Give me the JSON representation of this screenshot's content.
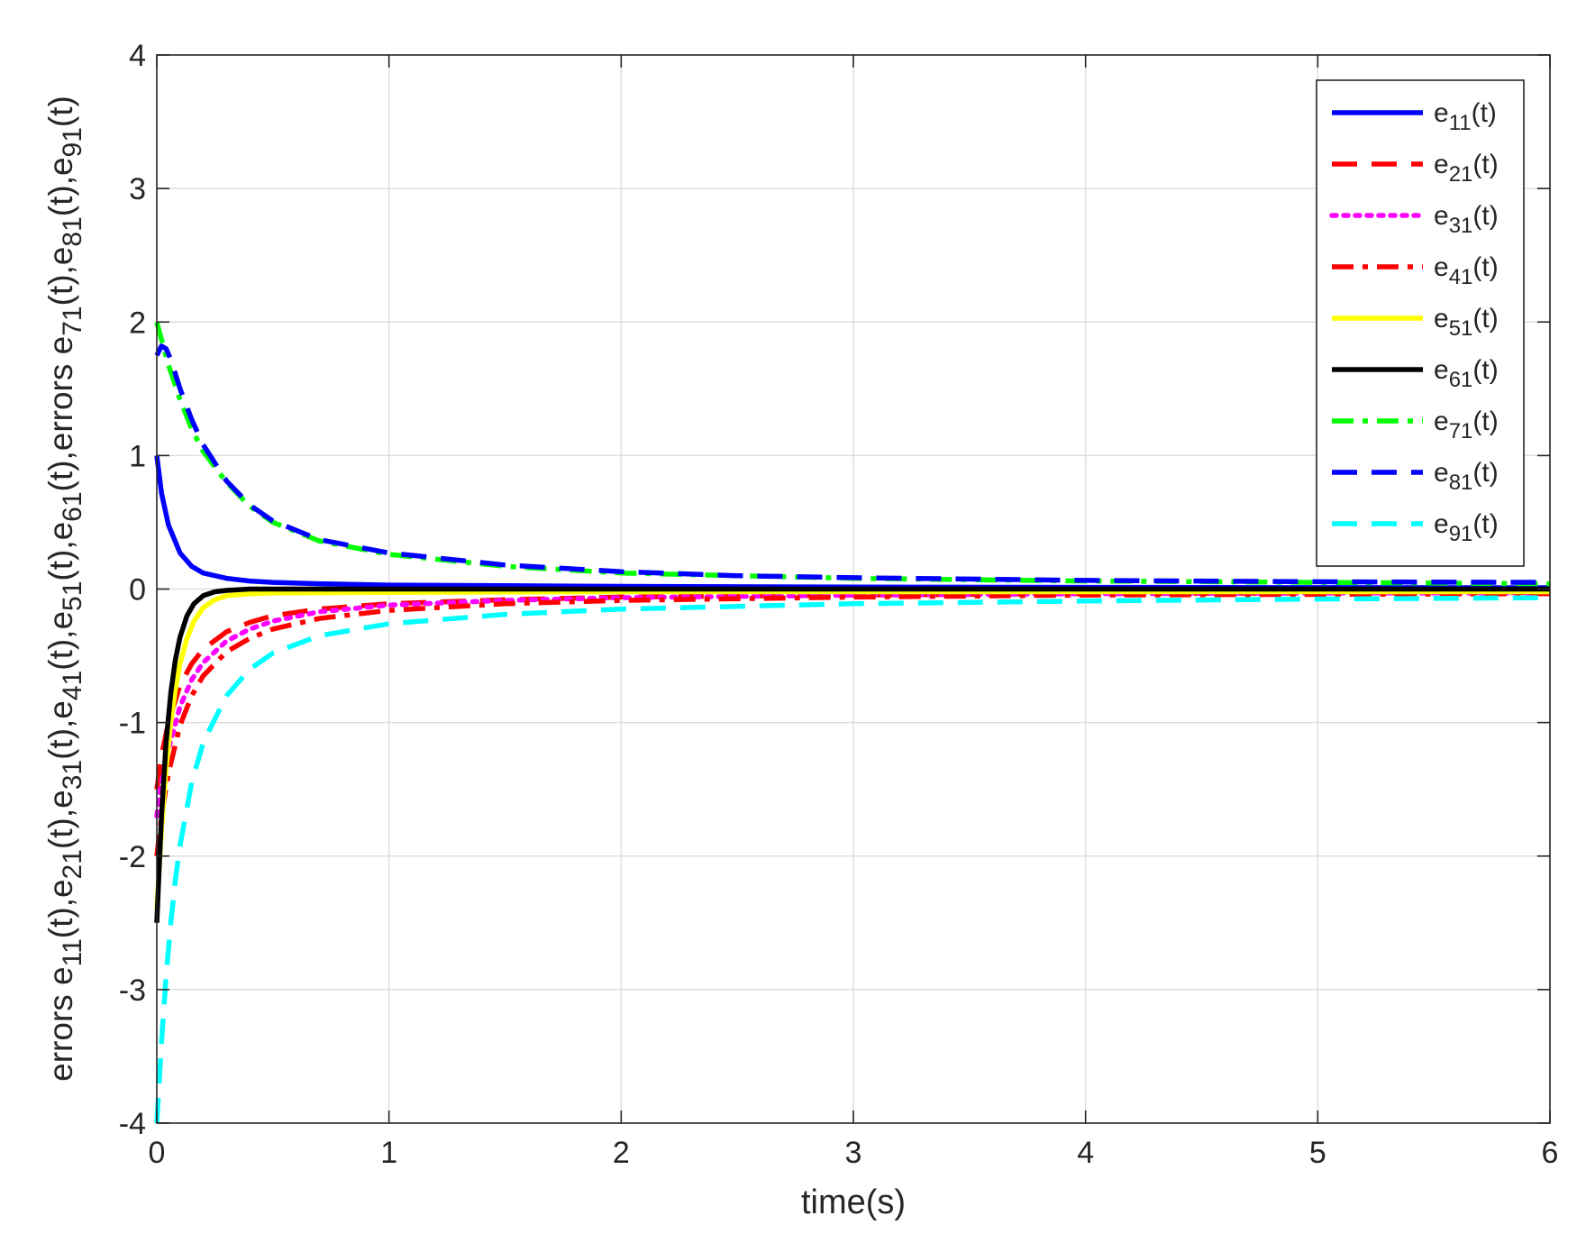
{
  "chart_data": {
    "type": "line",
    "title": "",
    "xlabel": "time(s)",
    "ylabel": "errors e11(t),e21(t),e31(t),e41(t),e51(t),e61(t),errors e71(t),e81(t),e91(t)",
    "ylabel_parts": [
      {
        "text": "errors e",
        "sub": false
      },
      {
        "text": "11",
        "sub": true
      },
      {
        "text": "(t),e",
        "sub": false
      },
      {
        "text": "21",
        "sub": true
      },
      {
        "text": "(t),e",
        "sub": false
      },
      {
        "text": "31",
        "sub": true
      },
      {
        "text": "(t),e",
        "sub": false
      },
      {
        "text": "41",
        "sub": true
      },
      {
        "text": "(t),e",
        "sub": false
      },
      {
        "text": "51",
        "sub": true
      },
      {
        "text": "(t),e",
        "sub": false
      },
      {
        "text": "61",
        "sub": true
      },
      {
        "text": "(t),errors e",
        "sub": false
      },
      {
        "text": "71",
        "sub": true
      },
      {
        "text": "(t),e",
        "sub": false
      },
      {
        "text": "81",
        "sub": true
      },
      {
        "text": "(t),e",
        "sub": false
      },
      {
        "text": "91",
        "sub": true
      },
      {
        "text": "(t)",
        "sub": false
      }
    ],
    "xlim": [
      0,
      6
    ],
    "ylim": [
      -4,
      4
    ],
    "xticks": [
      0,
      1,
      2,
      3,
      4,
      5,
      6
    ],
    "yticks": [
      -4,
      -3,
      -2,
      -1,
      0,
      1,
      2,
      3,
      4
    ],
    "grid": true,
    "legend_position": "top-right",
    "series": [
      {
        "name": "e11(t)",
        "sub": "11",
        "color": "#0000ff",
        "dash": "solid",
        "x": [
          0,
          0.02,
          0.05,
          0.1,
          0.15,
          0.2,
          0.3,
          0.4,
          0.5,
          0.7,
          1,
          1.5,
          2,
          3,
          4,
          5,
          6
        ],
        "y": [
          1.0,
          0.72,
          0.48,
          0.27,
          0.17,
          0.12,
          0.08,
          0.06,
          0.05,
          0.04,
          0.03,
          0.025,
          0.02,
          0.015,
          0.013,
          0.011,
          0.01
        ]
      },
      {
        "name": "e21(t)",
        "sub": "21",
        "color": "#ff0000",
        "dash": "dash",
        "x": [
          0,
          0.02,
          0.05,
          0.1,
          0.15,
          0.2,
          0.3,
          0.4,
          0.5,
          0.7,
          1,
          1.5,
          2,
          3,
          4,
          5,
          6
        ],
        "y": [
          -1.5,
          -1.25,
          -1.0,
          -0.72,
          -0.56,
          -0.45,
          -0.32,
          -0.25,
          -0.2,
          -0.15,
          -0.11,
          -0.08,
          -0.06,
          -0.045,
          -0.035,
          -0.03,
          -0.025
        ]
      },
      {
        "name": "e31(t)",
        "sub": "31",
        "color": "#ff00ff",
        "dash": "dot",
        "x": [
          0,
          0.02,
          0.05,
          0.1,
          0.15,
          0.2,
          0.3,
          0.4,
          0.5,
          0.7,
          1,
          1.5,
          2,
          3,
          4,
          5,
          6
        ],
        "y": [
          -1.7,
          -1.45,
          -1.2,
          -0.88,
          -0.68,
          -0.55,
          -0.39,
          -0.3,
          -0.24,
          -0.17,
          -0.12,
          -0.085,
          -0.065,
          -0.045,
          -0.035,
          -0.03,
          -0.03
        ]
      },
      {
        "name": "e41(t)",
        "sub": "41",
        "color": "#ff0000",
        "dash": "dashdot",
        "x": [
          0,
          0.02,
          0.05,
          0.1,
          0.15,
          0.2,
          0.3,
          0.4,
          0.5,
          0.7,
          1,
          1.5,
          2,
          3,
          4,
          5,
          6
        ],
        "y": [
          -2.0,
          -1.7,
          -1.38,
          -1.02,
          -0.8,
          -0.65,
          -0.47,
          -0.37,
          -0.3,
          -0.22,
          -0.16,
          -0.11,
          -0.085,
          -0.06,
          -0.045,
          -0.04,
          -0.035
        ]
      },
      {
        "name": "e51(t)",
        "sub": "51",
        "color": "#ffff00",
        "dash": "solid",
        "x": [
          0,
          0.02,
          0.04,
          0.06,
          0.08,
          0.1,
          0.13,
          0.16,
          0.2,
          0.25,
          0.3,
          0.4,
          0.5,
          1,
          2,
          4,
          6
        ],
        "y": [
          -2.4,
          -1.8,
          -1.35,
          -1.0,
          -0.75,
          -0.56,
          -0.37,
          -0.24,
          -0.14,
          -0.08,
          -0.05,
          -0.035,
          -0.03,
          -0.025,
          -0.02,
          -0.02,
          -0.02
        ]
      },
      {
        "name": "e61(t)",
        "sub": "61",
        "color": "#000000",
        "dash": "solid",
        "x": [
          0,
          0.02,
          0.04,
          0.06,
          0.08,
          0.1,
          0.13,
          0.16,
          0.2,
          0.25,
          0.3,
          0.4,
          0.5,
          1,
          2,
          4,
          6
        ],
        "y": [
          -2.5,
          -1.7,
          -1.15,
          -0.78,
          -0.53,
          -0.36,
          -0.2,
          -0.11,
          -0.05,
          -0.02,
          -0.01,
          0.0,
          0.0,
          0.0,
          0.0,
          0.0,
          0.0
        ]
      },
      {
        "name": "e71(t)",
        "sub": "71",
        "color": "#00ff00",
        "dash": "dashdot",
        "x": [
          0,
          0.02,
          0.05,
          0.1,
          0.15,
          0.2,
          0.3,
          0.4,
          0.5,
          0.7,
          1,
          1.5,
          2,
          2.5,
          3,
          4,
          5,
          6
        ],
        "y": [
          2.0,
          1.87,
          1.68,
          1.42,
          1.2,
          1.03,
          0.8,
          0.62,
          0.5,
          0.36,
          0.26,
          0.17,
          0.12,
          0.1,
          0.08,
          0.06,
          0.05,
          0.04
        ]
      },
      {
        "name": "e81(t)",
        "sub": "81",
        "color": "#0000ff",
        "dash": "dash",
        "x": [
          0,
          0.02,
          0.04,
          0.06,
          0.1,
          0.15,
          0.2,
          0.3,
          0.4,
          0.5,
          0.7,
          1,
          1.5,
          2,
          2.5,
          3,
          4,
          5,
          6
        ],
        "y": [
          1.75,
          1.82,
          1.8,
          1.72,
          1.5,
          1.27,
          1.08,
          0.81,
          0.63,
          0.51,
          0.37,
          0.27,
          0.18,
          0.13,
          0.1,
          0.085,
          0.065,
          0.055,
          0.05
        ]
      },
      {
        "name": "e91(t)",
        "sub": "91",
        "color": "#00ffff",
        "dash": "dash",
        "x": [
          0,
          0.02,
          0.04,
          0.06,
          0.08,
          0.1,
          0.15,
          0.2,
          0.3,
          0.4,
          0.5,
          0.7,
          1,
          1.5,
          2,
          3,
          4,
          5,
          6
        ],
        "y": [
          -4.0,
          -3.4,
          -2.9,
          -2.5,
          -2.18,
          -1.92,
          -1.45,
          -1.15,
          -0.8,
          -0.6,
          -0.48,
          -0.35,
          -0.26,
          -0.19,
          -0.15,
          -0.11,
          -0.09,
          -0.075,
          -0.065
        ]
      }
    ]
  }
}
